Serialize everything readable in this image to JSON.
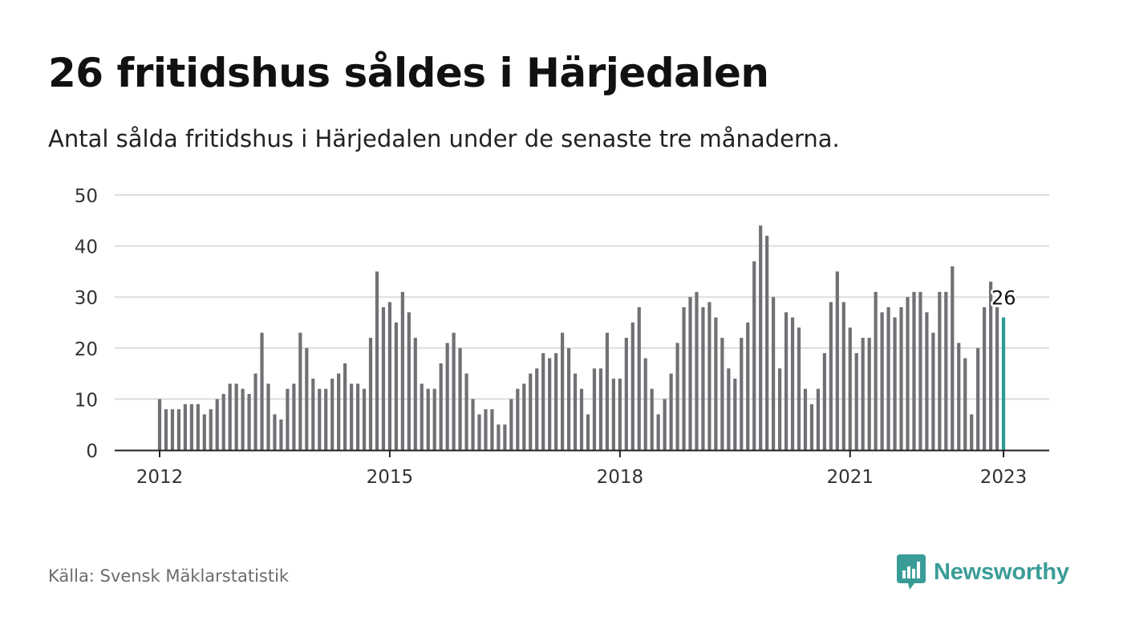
{
  "title": "26 fritidshus såldes i Härjedalen",
  "subtitle": "Antal sålda fritidshus i Härjedalen under de senaste tre månaderna.",
  "source": "Källa: Svensk Mäklarstatistik",
  "brand": {
    "name": "Newsworthy",
    "icon": "bar-chart-speech-bubble-icon",
    "color": "#3a9c97"
  },
  "colors": {
    "bar": "#707075",
    "highlight": "#2a9d8f",
    "grid": "#dddddd",
    "axis": "#222222"
  },
  "chart_data": {
    "type": "bar",
    "title": "26 fritidshus såldes i Härjedalen",
    "subtitle": "Antal sålda fritidshus i Härjedalen under de senaste tre månaderna.",
    "xlabel": "",
    "ylabel": "",
    "ylim": [
      0,
      50
    ],
    "yticks": [
      0,
      10,
      20,
      30,
      40,
      50
    ],
    "grid": true,
    "x_start": {
      "year": 2012,
      "month": 1
    },
    "xticks": [
      {
        "label": "2012",
        "year": 2012,
        "month": 1
      },
      {
        "label": "2015",
        "year": 2015,
        "month": 1
      },
      {
        "label": "2018",
        "year": 2018,
        "month": 1
      },
      {
        "label": "2021",
        "year": 2021,
        "month": 1
      },
      {
        "label": "2023",
        "year": 2023,
        "month": 1
      }
    ],
    "values": [
      10,
      8,
      8,
      8,
      9,
      9,
      9,
      7,
      8,
      10,
      11,
      13,
      13,
      12,
      11,
      15,
      23,
      13,
      7,
      6,
      12,
      13,
      23,
      20,
      14,
      12,
      12,
      14,
      15,
      17,
      13,
      13,
      12,
      22,
      35,
      28,
      29,
      25,
      31,
      27,
      22,
      13,
      12,
      12,
      17,
      21,
      23,
      20,
      15,
      10,
      7,
      8,
      8,
      5,
      5,
      10,
      12,
      13,
      15,
      16,
      19,
      18,
      19,
      23,
      20,
      15,
      12,
      7,
      16,
      16,
      23,
      14,
      14,
      22,
      25,
      28,
      18,
      12,
      7,
      10,
      15,
      21,
      28,
      30,
      31,
      28,
      29,
      26,
      22,
      16,
      14,
      22,
      25,
      37,
      44,
      42,
      30,
      16,
      27,
      26,
      24,
      12,
      9,
      12,
      19,
      29,
      35,
      29,
      24,
      19,
      22,
      22,
      31,
      27,
      28,
      26,
      28,
      30,
      31,
      31,
      27,
      23,
      31,
      31,
      36,
      21,
      18,
      7,
      20,
      28,
      33,
      28,
      26
    ],
    "highlight": {
      "index": 132,
      "value": 26,
      "label": "26"
    }
  }
}
